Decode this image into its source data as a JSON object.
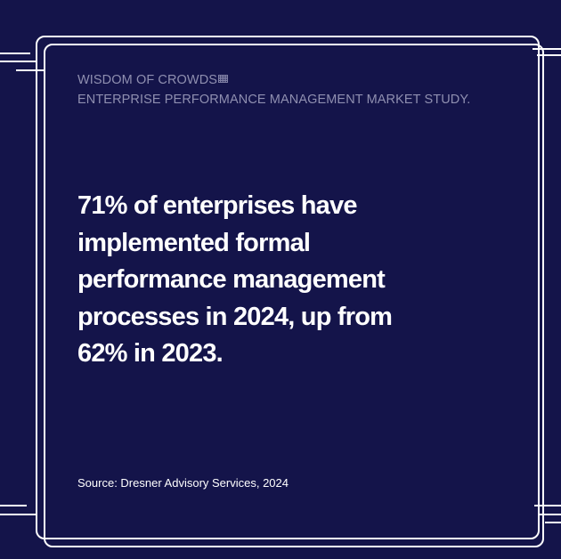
{
  "card": {
    "brand_line": "WISDOM OF CROWDS",
    "study_line": "ENTERPRISE PERFORMANCE MANAGEMENT MARKET STUDY.",
    "headline_lines": [
      "71% of enterprises have",
      "implemented formal",
      "performance management",
      "processes in 2024, up from",
      "62% in 2023."
    ],
    "source": "Source: Dresner Advisory Services, 2024"
  },
  "colors": {
    "background": "#14144a",
    "frame": "#ffffff",
    "header_text": "#8f8fb0",
    "body_text": "#ffffff"
  }
}
